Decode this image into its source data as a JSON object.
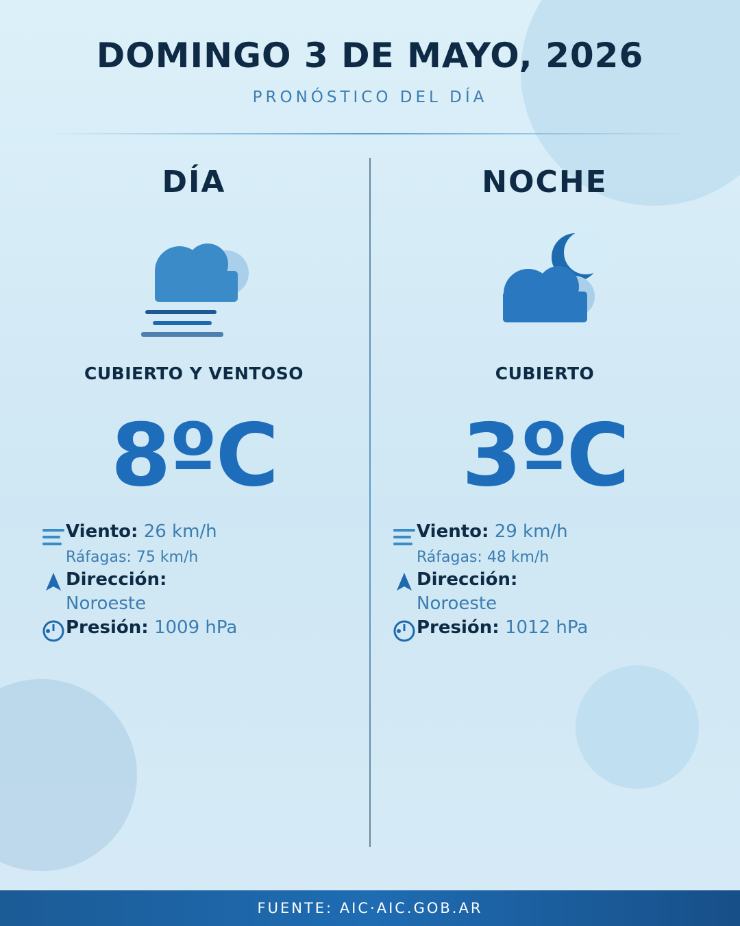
{
  "header": {
    "title": "DOMINGO 3 DE MAYO, 2026",
    "subtitle": "PRONÓSTICO DEL DÍA"
  },
  "columns": [
    {
      "heading": "DÍA",
      "condition": "CUBIERTO Y VENTOSO",
      "temperature": "8ºC",
      "wind_label": "Viento:",
      "wind_value": "26 km/h",
      "gusts": "Ráfagas: 75 km/h",
      "direction_label": "Dirección:",
      "direction_value": "Noroeste",
      "pressure_label": "Presión:",
      "pressure_value": "1009 hPa"
    },
    {
      "heading": "NOCHE",
      "condition": "CUBIERTO",
      "temperature": "3ºC",
      "wind_label": "Viento:",
      "wind_value": "29 km/h",
      "gusts": "Ráfagas: 48 km/h",
      "direction_label": "Dirección:",
      "direction_value": "Noroeste",
      "pressure_label": "Presión:",
      "pressure_value": "1012 hPa"
    }
  ],
  "footer": {
    "source": "FUENTE: AIC·AIC.GOB.AR"
  }
}
